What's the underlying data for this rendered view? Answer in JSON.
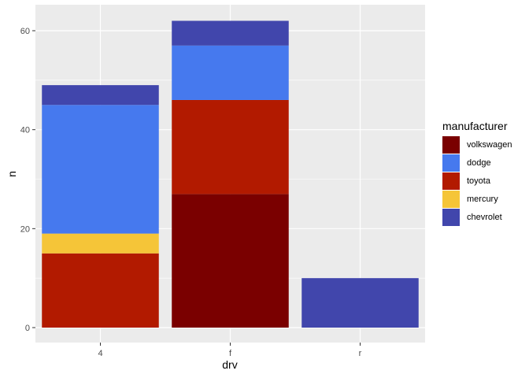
{
  "chart_data": {
    "type": "bar",
    "stacked": true,
    "title": "",
    "xlabel": "drv",
    "ylabel": "n",
    "categories": [
      "4",
      "f",
      "r"
    ],
    "ylim": [
      -2.5,
      65
    ],
    "yticks": [
      0,
      20,
      40,
      60
    ],
    "grid": true,
    "legend": {
      "title": "manufacturer",
      "position": "right",
      "entries": [
        "volkswagen",
        "dodge",
        "toyota",
        "mercury",
        "chevrolet"
      ]
    },
    "stack_order_bottom_to_top": [
      "volkswagen",
      "toyota",
      "mercury",
      "dodge",
      "chevrolet"
    ],
    "series": [
      {
        "name": "volkswagen",
        "color": "#7A0000",
        "values": [
          0,
          27,
          0
        ]
      },
      {
        "name": "dodge",
        "color": "#4679EE",
        "values": [
          26,
          11,
          0
        ]
      },
      {
        "name": "toyota",
        "color": "#B21A00",
        "values": [
          15,
          19,
          0
        ]
      },
      {
        "name": "mercury",
        "color": "#F5C538",
        "values": [
          4,
          0,
          0
        ]
      },
      {
        "name": "chevrolet",
        "color": "#4146AC",
        "values": [
          4,
          5,
          10
        ]
      }
    ],
    "totals": [
      49,
      62,
      10
    ]
  }
}
